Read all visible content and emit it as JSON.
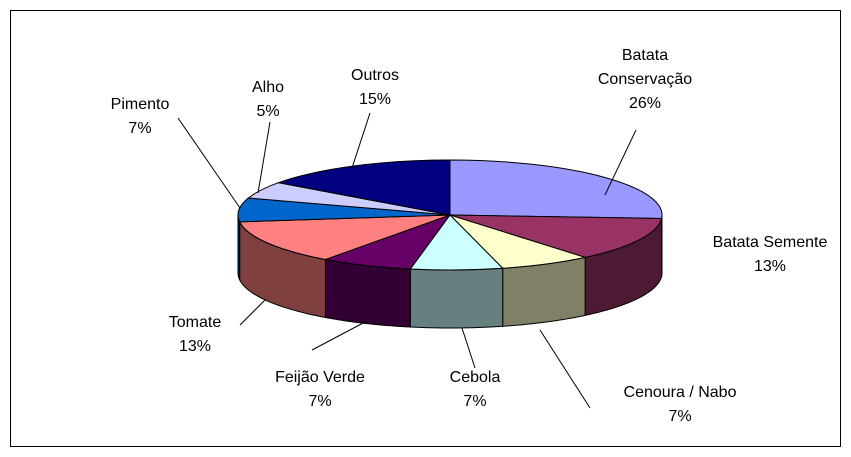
{
  "chart_data": {
    "type": "pie",
    "categories": [
      "Batata Conservação",
      "Batata Semente",
      "Cenoura / Nabo",
      "Cebola",
      "Feijão Verde",
      "Tomate",
      "Pimento",
      "Alho",
      "Outros"
    ],
    "values": [
      26,
      13,
      7,
      7,
      7,
      13,
      7,
      5,
      15
    ],
    "value_labels": [
      "26%",
      "13%",
      "7%",
      "7%",
      "7%",
      "13%",
      "7%",
      "5%",
      "15%"
    ],
    "colors": [
      "#9999ff",
      "#993366",
      "#ffffcc",
      "#ccffff",
      "#660066",
      "#ff8080",
      "#0066cc",
      "#ccccff",
      "#000080"
    ]
  }
}
